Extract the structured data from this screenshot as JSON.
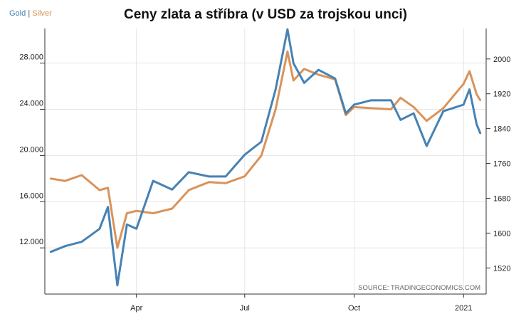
{
  "legend": {
    "gold": "Gold",
    "sep": "|",
    "silver": "Silver"
  },
  "title": "Ceny zlata a stříbra (v USD za trojskou unci)",
  "source": "SOURCE: TRADINGECONOMICS.COM",
  "colors": {
    "gold": "#4682b4",
    "silver": "#d9935a"
  },
  "chart_data": {
    "type": "line",
    "title": "Ceny zlata a stříbra (v USD za trojskou unci)",
    "x": [
      "2020-01-20",
      "2020-02-01",
      "2020-02-15",
      "2020-03-01",
      "2020-03-08",
      "2020-03-16",
      "2020-03-24",
      "2020-04-01",
      "2020-04-15",
      "2020-05-01",
      "2020-05-15",
      "2020-06-01",
      "2020-06-15",
      "2020-07-01",
      "2020-07-15",
      "2020-07-27",
      "2020-08-06",
      "2020-08-11",
      "2020-08-20",
      "2020-09-01",
      "2020-09-15",
      "2020-09-24",
      "2020-10-01",
      "2020-10-15",
      "2020-11-01",
      "2020-11-09",
      "2020-11-20",
      "2020-12-01",
      "2020-12-15",
      "2021-01-01",
      "2021-01-06",
      "2021-01-12",
      "2021-01-15"
    ],
    "x_tick_labels": [
      "Apr",
      "Jul",
      "Oct",
      "2021"
    ],
    "series": [
      {
        "name": "Gold",
        "axis": "right",
        "ylim": [
          1460,
          2070
        ],
        "ticks": [
          1520,
          1600,
          1680,
          1760,
          1840,
          1920,
          2000
        ],
        "values": [
          1557,
          1570,
          1580,
          1610,
          1660,
          1480,
          1620,
          1610,
          1720,
          1700,
          1740,
          1730,
          1730,
          1780,
          1810,
          1930,
          2068,
          1990,
          1945,
          1975,
          1955,
          1875,
          1895,
          1905,
          1905,
          1860,
          1875,
          1800,
          1880,
          1895,
          1930,
          1850,
          1830
        ]
      },
      {
        "name": "Silver",
        "axis": "left",
        "ylim": [
          8000,
          31000
        ],
        "ticks": [
          12000,
          16000,
          20000,
          24000,
          28000
        ],
        "values": [
          18000,
          17800,
          18300,
          17000,
          17200,
          12000,
          15000,
          15200,
          15000,
          15400,
          17000,
          17700,
          17600,
          18200,
          20000,
          24000,
          29000,
          26500,
          27500,
          27000,
          26600,
          23500,
          24200,
          24100,
          24000,
          25000,
          24200,
          23000,
          24100,
          26200,
          27300,
          25300,
          24800
        ]
      }
    ],
    "left_tick_labels": [
      "12.000",
      "16.000",
      "20.000",
      "24.000",
      "28.000"
    ],
    "right_tick_labels": [
      "1520",
      "1600",
      "1680",
      "1760",
      "1840",
      "1920",
      "2000"
    ],
    "grid": true,
    "legend": "top-left"
  }
}
